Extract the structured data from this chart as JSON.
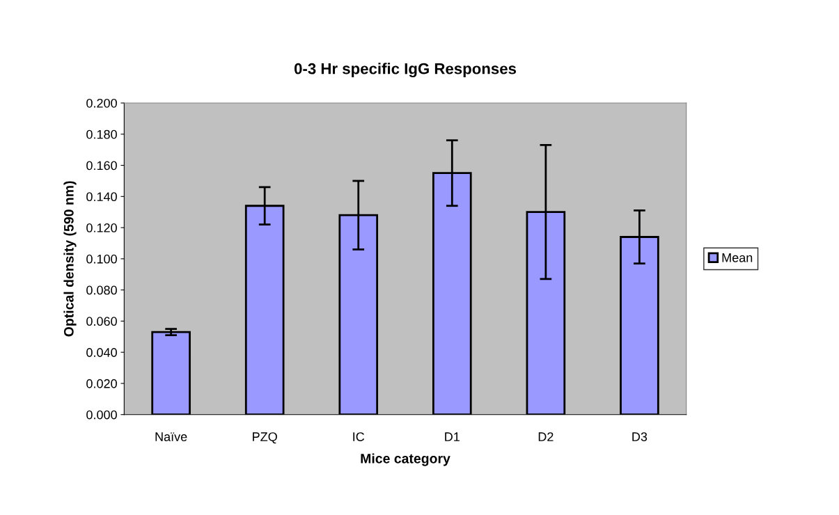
{
  "chart_data": {
    "type": "bar",
    "title": "0-3 Hr specific IgG Responses",
    "xlabel": "Mice category",
    "ylabel": "Optical density (590 nm)",
    "categories": [
      "Naïve",
      "PZQ",
      "IC",
      "D1",
      "D2",
      "D3"
    ],
    "series": [
      {
        "name": "Mean",
        "color": "#9999ff",
        "values": [
          0.053,
          0.134,
          0.128,
          0.155,
          0.13,
          0.114
        ],
        "errors": [
          0.002,
          0.012,
          0.022,
          0.021,
          0.043,
          0.017
        ]
      }
    ],
    "ylim": [
      0,
      0.2
    ],
    "yticks": [
      {
        "value": 0,
        "label": "0.000"
      },
      {
        "value": 0.02,
        "label": "0.020"
      },
      {
        "value": 0.04,
        "label": "0.040"
      },
      {
        "value": 0.06,
        "label": "0.060"
      },
      {
        "value": 0.08,
        "label": "0.080"
      },
      {
        "value": 0.1,
        "label": "0.100"
      },
      {
        "value": 0.12,
        "label": "0.120"
      },
      {
        "value": 0.14,
        "label": "0.140"
      },
      {
        "value": 0.16,
        "label": "0.160"
      },
      {
        "value": 0.18,
        "label": "0.180"
      },
      {
        "value": 0.2,
        "label": "0.200"
      }
    ],
    "legend": "right"
  }
}
